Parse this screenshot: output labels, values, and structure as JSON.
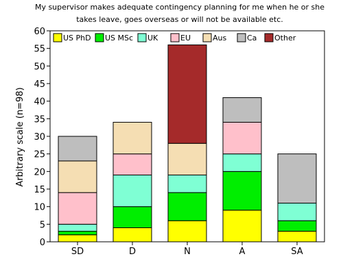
{
  "chart_data": {
    "type": "bar",
    "stacked": true,
    "title_lines": [
      "My supervisor makes adequate contingency planning for me when he or she",
      "takes leave, goes overseas or will not be available etc."
    ],
    "xlabel": "",
    "ylabel": "Arbitrary scale (n=98)",
    "ylim": [
      0,
      60
    ],
    "yticks": [
      0,
      5,
      10,
      15,
      20,
      25,
      30,
      35,
      40,
      45,
      50,
      55,
      60
    ],
    "grid": false,
    "legend_position": "top",
    "categories": [
      "SD",
      "D",
      "N",
      "A",
      "SA"
    ],
    "series": [
      {
        "name": "US PhD",
        "color": "#ffff00",
        "values": [
          2,
          4,
          6,
          9,
          3
        ]
      },
      {
        "name": "US MSc",
        "color": "#00ee00",
        "values": [
          1,
          6,
          8,
          11,
          3
        ]
      },
      {
        "name": "UK",
        "color": "#7fffd4",
        "values": [
          2,
          9,
          5,
          5,
          5
        ]
      },
      {
        "name": "EU",
        "color": "#ffc0cb",
        "values": [
          9,
          6,
          0,
          9,
          0
        ]
      },
      {
        "name": "Aus",
        "color": "#f5deb3",
        "values": [
          9,
          9,
          9,
          0,
          0
        ]
      },
      {
        "name": "Ca",
        "color": "#bebebe",
        "values": [
          7,
          0,
          0,
          7,
          14
        ]
      },
      {
        "name": "Other",
        "color": "#a52a2a",
        "values": [
          0,
          0,
          28,
          0,
          0
        ]
      }
    ]
  }
}
